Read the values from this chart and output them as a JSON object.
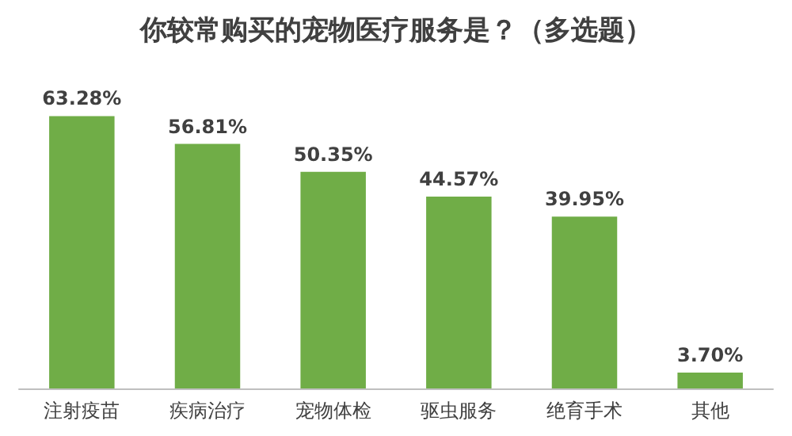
{
  "chart_data": {
    "type": "bar",
    "title": "你较常购买的宠物医疗服务是？（多选题）",
    "categories": [
      "注射疫苗",
      "疾病治疗",
      "宠物体检",
      "驱虫服务",
      "绝育手术",
      "其他"
    ],
    "values": [
      63.28,
      56.81,
      50.35,
      44.57,
      39.95,
      3.7
    ],
    "value_labels": [
      "63.28%",
      "56.81%",
      "50.35%",
      "44.57%",
      "39.95%",
      "3.70%"
    ],
    "color": "#70ad47"
  }
}
